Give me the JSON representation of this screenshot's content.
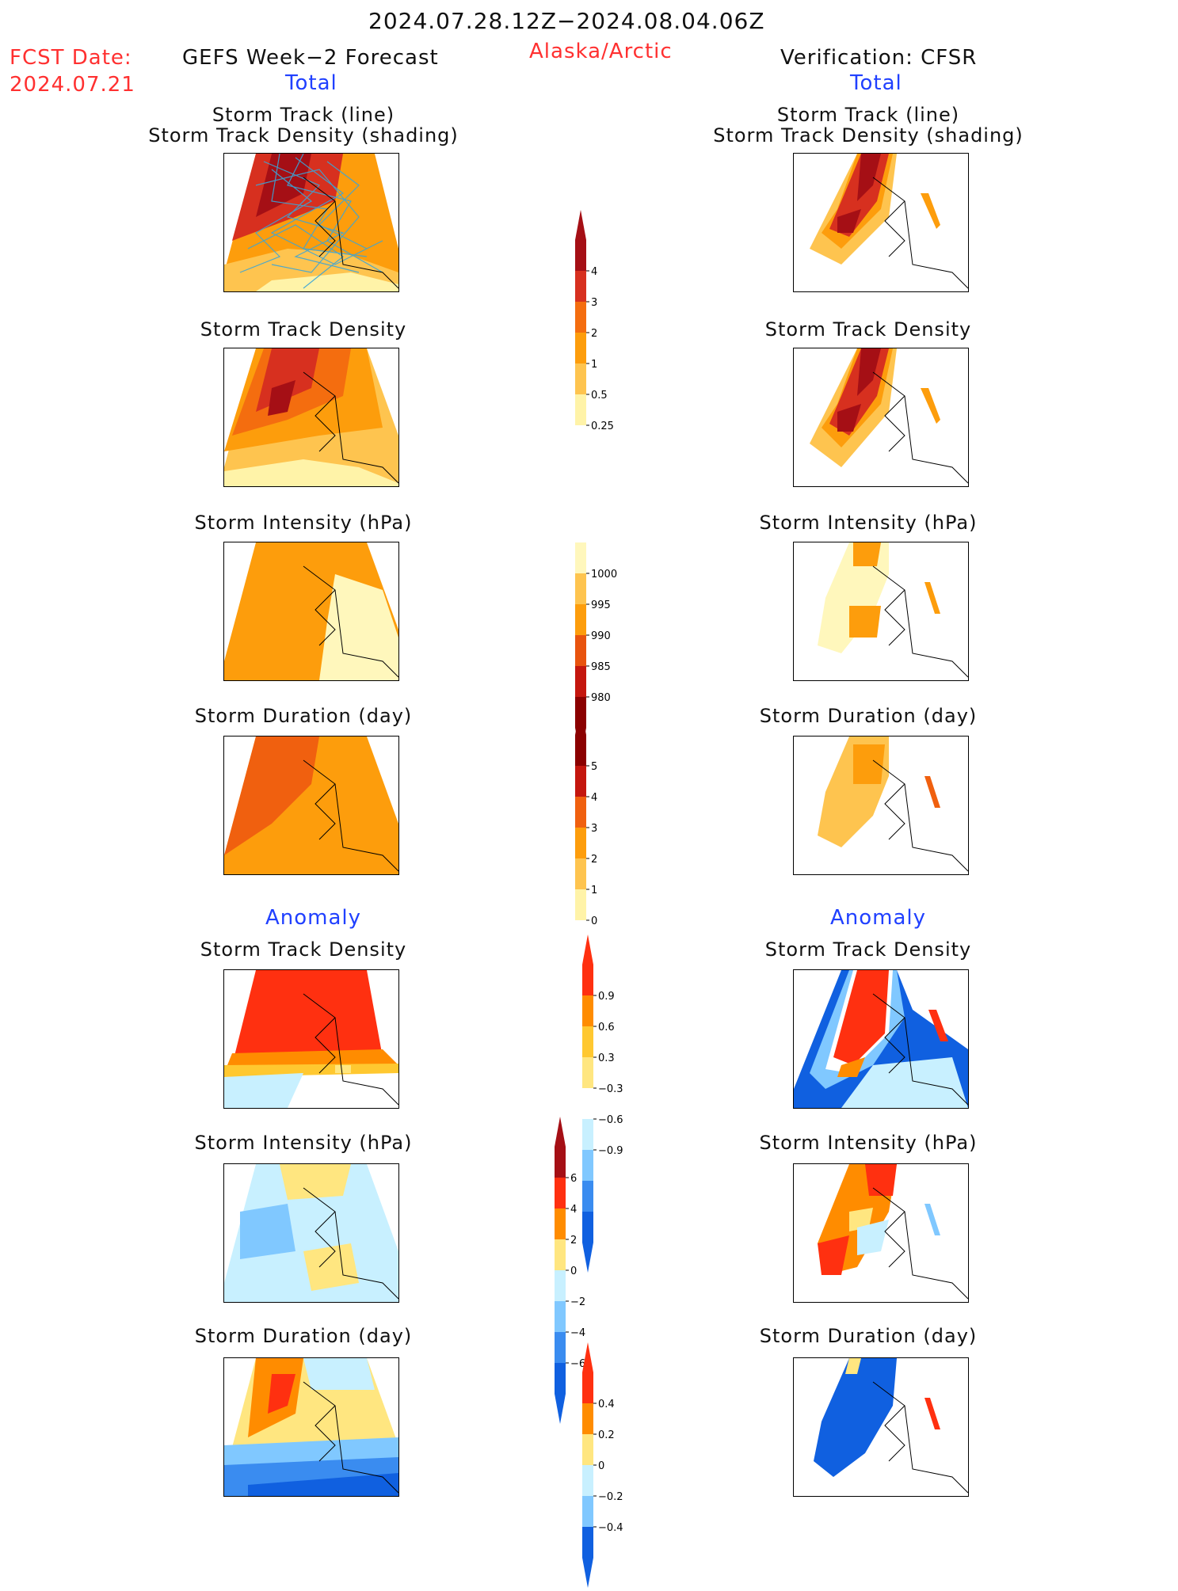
{
  "header": {
    "period": "2024.07.28.12Z−2024.08.04.06Z",
    "fcst_label": "FCST Date:",
    "fcst_date": "2024.07.21",
    "left_title": "GEFS Week−2 Forecast",
    "region": "Alaska/Arctic",
    "right_title": "Verification: CFSR"
  },
  "sections": {
    "total": "Total",
    "anomaly": "Anomaly"
  },
  "panel_titles": {
    "track_line": "Storm Track (line)",
    "track_density_shading": "Storm Track Density (shading)",
    "track_density": "Storm Track Density",
    "intensity": "Storm Intensity (hPa)",
    "duration": "Storm Duration (day)"
  },
  "colorbars": {
    "total_density": {
      "labels": [
        "4",
        "3",
        "2",
        "1",
        "0.5",
        "0.25"
      ],
      "colors": [
        "#a50f15",
        "#d7301f",
        "#f46d0f",
        "#fd9d0c",
        "#fec44f",
        "#fff3a8"
      ]
    },
    "total_intensity": {
      "labels": [
        "1000",
        "995",
        "990",
        "985",
        "980"
      ],
      "colors": [
        "#fff7bc",
        "#fec44f",
        "#fd9d0c",
        "#e8530e",
        "#c4160e",
        "#8b0000"
      ]
    },
    "total_duration": {
      "labels": [
        "5",
        "4",
        "3",
        "2",
        "1",
        "0"
      ],
      "colors": [
        "#8b0000",
        "#c4160e",
        "#f0600f",
        "#fd9d0c",
        "#fec44f",
        "#fff3a8"
      ]
    },
    "anom_density": {
      "labels": [
        "0.9",
        "0.6",
        "0.3",
        "−0.3",
        "−0.6",
        "−0.9"
      ],
      "colors": [
        "#ff3010",
        "#ff8c00",
        "#ffc830",
        "#ffe680",
        "#ffffff",
        "#c8f0ff",
        "#80c8ff",
        "#3a8cf0",
        "#1060e0"
      ]
    },
    "anom_intensity": {
      "labels": [
        "6",
        "4",
        "2",
        "0",
        "−2",
        "−4",
        "−6"
      ],
      "colors": [
        "#a50f15",
        "#ff3010",
        "#ff8c00",
        "#ffe680",
        "#c8f0ff",
        "#80c8ff",
        "#3a8cf0",
        "#1060e0"
      ]
    },
    "anom_duration": {
      "labels": [
        "0.4",
        "0.2",
        "0",
        "−0.2",
        "−0.4"
      ],
      "colors": [
        "#ff3010",
        "#ff8c00",
        "#ffe680",
        "#c8f0ff",
        "#80c8ff",
        "#1060e0"
      ]
    }
  }
}
